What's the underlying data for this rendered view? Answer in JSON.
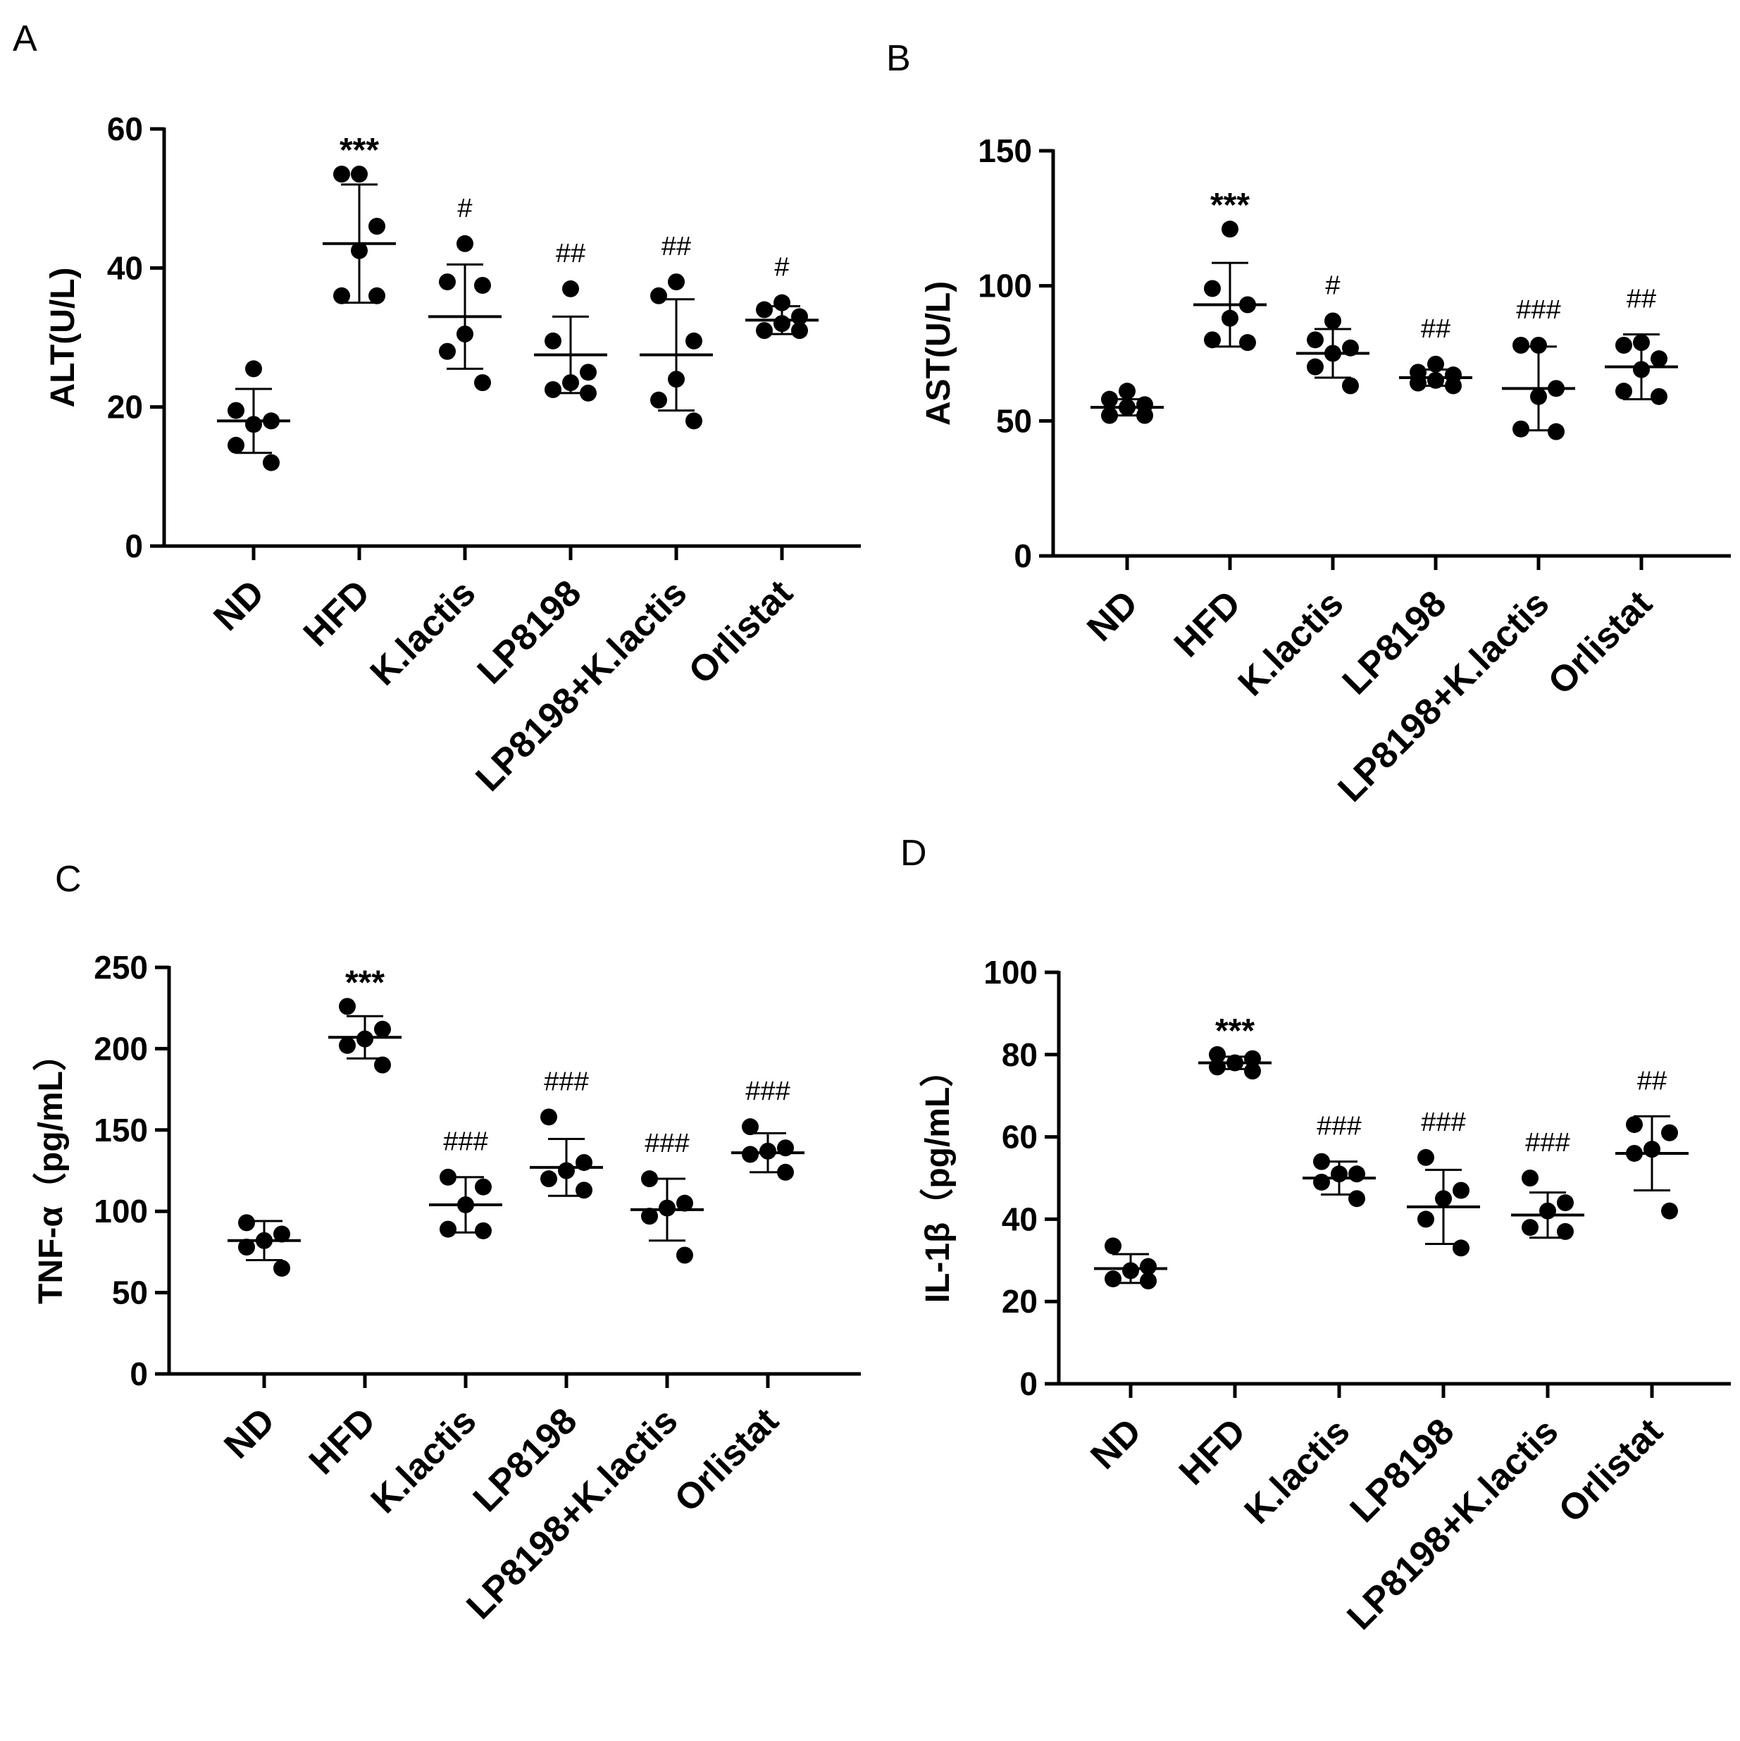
{
  "colors": {
    "ink": "#000000",
    "background": "#ffffff"
  },
  "chart_data": [
    {
      "panel": "A",
      "type": "scatter",
      "title": "",
      "xlabel": "",
      "ylabel": "ALT(U/L)",
      "ylim": [
        0,
        60
      ],
      "yticks": [
        "0",
        "20",
        "40",
        "60"
      ],
      "categories": [
        "ND",
        "HFD",
        "K.lactis",
        "LP8198",
        "LP8198+K.lactis",
        "Orlistat"
      ],
      "groups": [
        {
          "category": "ND",
          "mean": 18,
          "sd": 4.6,
          "points": [
            25.5,
            19.5,
            18,
            17.5,
            14.5,
            12
          ],
          "significance": ""
        },
        {
          "category": "HFD",
          "mean": 43.5,
          "sd": 8.5,
          "points": [
            53.5,
            53.5,
            46,
            42.5,
            36,
            36
          ],
          "significance": "***"
        },
        {
          "category": "K.lactis",
          "mean": 33,
          "sd": 7.5,
          "points": [
            43.5,
            38,
            37.5,
            30.5,
            28,
            23.5
          ],
          "significance": "#"
        },
        {
          "category": "LP8198",
          "mean": 27.5,
          "sd": 5.5,
          "points": [
            37,
            29.5,
            25,
            23.5,
            22.5,
            22
          ],
          "significance": "##"
        },
        {
          "category": "LP8198+K.lactis",
          "mean": 27.5,
          "sd": 8,
          "points": [
            38,
            36,
            29.5,
            24,
            21,
            18
          ],
          "significance": "##"
        },
        {
          "category": "Orlistat",
          "mean": 32.5,
          "sd": 2,
          "points": [
            35,
            34,
            33,
            32,
            31,
            31
          ],
          "significance": "#"
        }
      ]
    },
    {
      "panel": "B",
      "type": "scatter",
      "title": "",
      "xlabel": "",
      "ylabel": "AST(U/L)",
      "ylim": [
        0,
        150
      ],
      "yticks": [
        "0",
        "50",
        "100",
        "150"
      ],
      "categories": [
        "ND",
        "HFD",
        "K.lactis",
        "LP8198",
        "LP8198+K.lactis",
        "Orlistat"
      ],
      "groups": [
        {
          "category": "ND",
          "mean": 55,
          "sd": 3,
          "points": [
            61,
            58,
            56,
            55,
            52,
            52
          ],
          "significance": ""
        },
        {
          "category": "HFD",
          "mean": 93,
          "sd": 15.5,
          "points": [
            121,
            99,
            93,
            88,
            80,
            79
          ],
          "significance": "***"
        },
        {
          "category": "K.lactis",
          "mean": 75,
          "sd": 9,
          "points": [
            87,
            80,
            77,
            75,
            70,
            63
          ],
          "significance": "#"
        },
        {
          "category": "LP8198",
          "mean": 66,
          "sd": 3,
          "points": [
            71,
            68,
            67,
            65,
            64,
            63
          ],
          "significance": "##"
        },
        {
          "category": "LP8198+K.lactis",
          "mean": 62,
          "sd": 15.5,
          "points": [
            78,
            78,
            62,
            59,
            47,
            46
          ],
          "significance": "###"
        },
        {
          "category": "Orlistat",
          "mean": 70,
          "sd": 12,
          "points": [
            79,
            78,
            73,
            69,
            61,
            59
          ],
          "significance": "##"
        }
      ]
    },
    {
      "panel": "C",
      "type": "scatter",
      "title": "",
      "xlabel": "",
      "ylabel": "TNF-α（pg/mL）",
      "ylim": [
        0,
        250
      ],
      "yticks": [
        "0",
        "50",
        "100",
        "150",
        "200",
        "250"
      ],
      "categories": [
        "ND",
        "HFD",
        "K.lactis",
        "LP8198",
        "LP8198+K.lactis",
        "Orlistat"
      ],
      "groups": [
        {
          "category": "ND",
          "mean": 82,
          "sd": 12,
          "points": [
            93,
            86,
            82,
            78,
            65
          ],
          "significance": ""
        },
        {
          "category": "HFD",
          "mean": 207,
          "sd": 13,
          "points": [
            226,
            212,
            206,
            202,
            190
          ],
          "significance": "***"
        },
        {
          "category": "K.lactis",
          "mean": 104,
          "sd": 17,
          "points": [
            121,
            115,
            104,
            89,
            88
          ],
          "significance": "###"
        },
        {
          "category": "LP8198",
          "mean": 127,
          "sd": 17.5,
          "points": [
            158,
            130,
            125,
            120,
            113
          ],
          "significance": "###"
        },
        {
          "category": "LP8198+K.lactis",
          "mean": 101,
          "sd": 19,
          "points": [
            120,
            105,
            102,
            97,
            73
          ],
          "significance": "###"
        },
        {
          "category": "Orlistat",
          "mean": 136,
          "sd": 12,
          "points": [
            152,
            139,
            137,
            135,
            124
          ],
          "significance": "###"
        }
      ]
    },
    {
      "panel": "D",
      "type": "scatter",
      "title": "",
      "xlabel": "",
      "ylabel": "IL-1β（pg/mL）",
      "ylim": [
        0,
        100
      ],
      "yticks": [
        "0",
        "20",
        "40",
        "60",
        "80",
        "100"
      ],
      "categories": [
        "ND",
        "HFD",
        "K.lactis",
        "LP8198",
        "LP8198+K.lactis",
        "Orlistat"
      ],
      "groups": [
        {
          "category": "ND",
          "mean": 28,
          "sd": 3.5,
          "points": [
            33.5,
            28.5,
            27.5,
            25.5,
            25
          ],
          "significance": ""
        },
        {
          "category": "HFD",
          "mean": 78,
          "sd": 1.5,
          "points": [
            80,
            79,
            78,
            77,
            76
          ],
          "significance": "***"
        },
        {
          "category": "K.lactis",
          "mean": 50,
          "sd": 4,
          "points": [
            54,
            51,
            51,
            49,
            45
          ],
          "significance": "###"
        },
        {
          "category": "LP8198",
          "mean": 43,
          "sd": 9,
          "points": [
            55,
            47,
            45,
            40,
            33
          ],
          "significance": "###"
        },
        {
          "category": "LP8198+K.lactis",
          "mean": 41,
          "sd": 5.5,
          "points": [
            50,
            44,
            42,
            38,
            37
          ],
          "significance": "###"
        },
        {
          "category": "Orlistat",
          "mean": 56,
          "sd": 9,
          "points": [
            63,
            61,
            57,
            56,
            42
          ],
          "significance": "##"
        }
      ]
    }
  ]
}
